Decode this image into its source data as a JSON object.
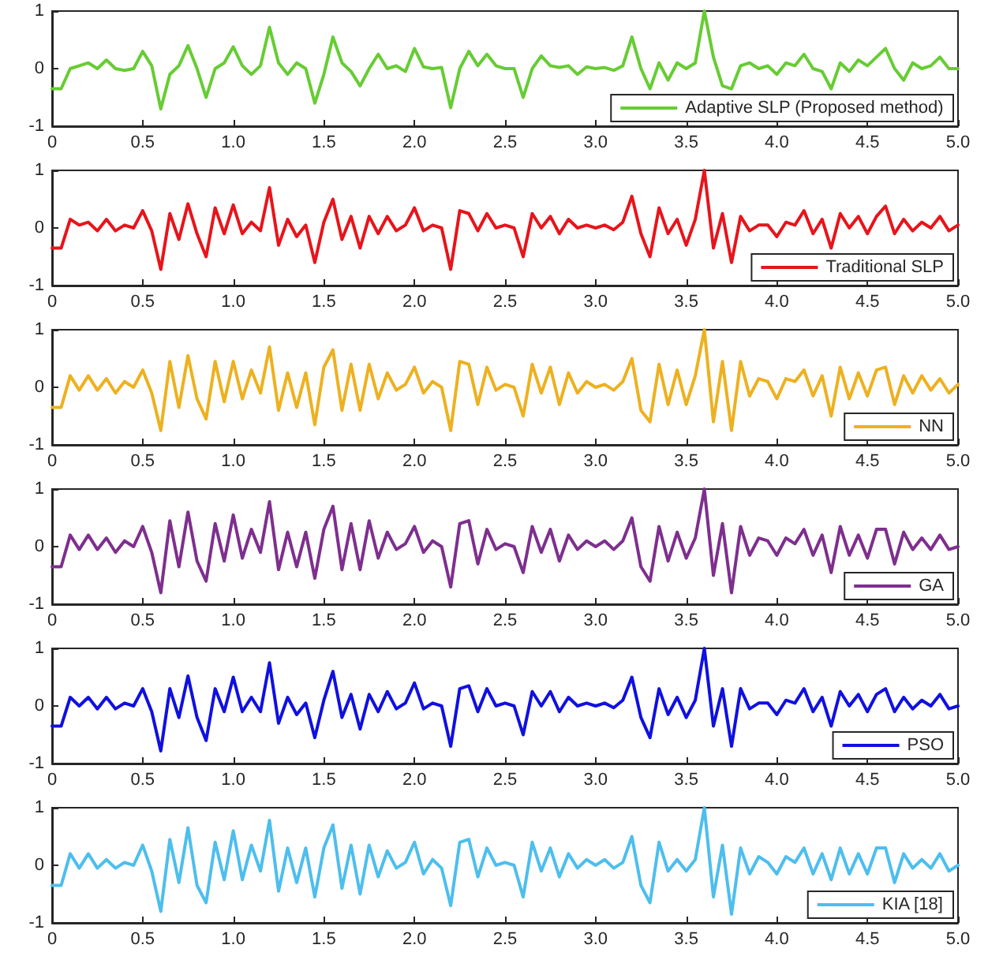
{
  "chart_data": [
    {
      "type": "line",
      "x": [
        0,
        0.05,
        0.1,
        0.15,
        0.2,
        0.25,
        0.3,
        0.35,
        0.4,
        0.45,
        0.5,
        0.55,
        0.6,
        0.65,
        0.7,
        0.75,
        0.8,
        0.85,
        0.9,
        0.95,
        1,
        1.05,
        1.1,
        1.15,
        1.2,
        1.25,
        1.3,
        1.35,
        1.4,
        1.45,
        1.5,
        1.55,
        1.6,
        1.65,
        1.7,
        1.75,
        1.8,
        1.85,
        1.9,
        1.95,
        2,
        2.05,
        2.1,
        2.15,
        2.2,
        2.25,
        2.3,
        2.35,
        2.4,
        2.45,
        2.5,
        2.55,
        2.6,
        2.65,
        2.7,
        2.75,
        2.8,
        2.85,
        2.9,
        2.95,
        3,
        3.05,
        3.1,
        3.15,
        3.2,
        3.25,
        3.3,
        3.35,
        3.4,
        3.45,
        3.5,
        3.55,
        3.6,
        3.65,
        3.7,
        3.75,
        3.8,
        3.85,
        3.9,
        3.95,
        4,
        4.05,
        4.1,
        4.15,
        4.2,
        4.25,
        4.3,
        4.35,
        4.4,
        4.45,
        4.5,
        4.55,
        4.6,
        4.65,
        4.7,
        4.75,
        4.8,
        4.85,
        4.9,
        4.95,
        5
      ],
      "series": [
        {
          "name": "Adaptive SLP (Proposed method)",
          "color": "#66cc33",
          "values": [
            -0.35,
            -0.35,
            0,
            0.05,
            0.1,
            0,
            0.15,
            0,
            -0.03,
            0,
            0.3,
            0.05,
            -0.7,
            -0.1,
            0.05,
            0.4,
            0,
            -0.5,
            0,
            0.1,
            0.38,
            0.05,
            -0.1,
            0.05,
            0.72,
            0.1,
            -0.1,
            0.1,
            0,
            -0.6,
            -0.1,
            0.55,
            0.1,
            -0.05,
            -0.3,
            0,
            0.25,
            0,
            0.05,
            -0.05,
            0.35,
            0.03,
            0,
            0.02,
            -0.68,
            0,
            0.3,
            0.05,
            0.25,
            0.05,
            0,
            0,
            -0.5,
            0,
            0.22,
            0.05,
            0.02,
            0.05,
            -0.1,
            0.03,
            0,
            0.02,
            -0.03,
            0.05,
            0.55,
            0,
            -0.35,
            0.1,
            -0.2,
            0.1,
            0,
            0.1,
            1.0,
            0.2,
            -0.3,
            -0.35,
            0.05,
            0.1,
            0,
            0.05,
            -0.1,
            0.1,
            0.05,
            0.25,
            0,
            -0.05,
            -0.35,
            0.1,
            -0.05,
            0.15,
            0.05,
            0.2,
            0.35,
            0,
            -0.2,
            0.1,
            0,
            0.05,
            0.2,
            0,
            0
          ]
        }
      ],
      "xlim": [
        0,
        5
      ],
      "xticks": [
        0,
        0.5,
        {
          "value": 1,
          "label": "1.0"
        },
        1.5,
        {
          "value": 2,
          "label": "2.0"
        },
        2.5,
        {
          "value": 3,
          "label": "3.0"
        },
        3.5,
        {
          "value": 4,
          "label": "4.0"
        },
        4.5,
        {
          "value": 5,
          "label": "5.0"
        }
      ],
      "ylim": [
        -1,
        1
      ],
      "yticks": [
        -1,
        0,
        1
      ],
      "grid": false,
      "legend": "bottom right"
    },
    {
      "type": "line",
      "x": [
        0,
        0.05,
        0.1,
        0.15,
        0.2,
        0.25,
        0.3,
        0.35,
        0.4,
        0.45,
        0.5,
        0.55,
        0.6,
        0.65,
        0.7,
        0.75,
        0.8,
        0.85,
        0.9,
        0.95,
        1,
        1.05,
        1.1,
        1.15,
        1.2,
        1.25,
        1.3,
        1.35,
        1.4,
        1.45,
        1.5,
        1.55,
        1.6,
        1.65,
        1.7,
        1.75,
        1.8,
        1.85,
        1.9,
        1.95,
        2,
        2.05,
        2.1,
        2.15,
        2.2,
        2.25,
        2.3,
        2.35,
        2.4,
        2.45,
        2.5,
        2.55,
        2.6,
        2.65,
        2.7,
        2.75,
        2.8,
        2.85,
        2.9,
        2.95,
        3,
        3.05,
        3.1,
        3.15,
        3.2,
        3.25,
        3.3,
        3.35,
        3.4,
        3.45,
        3.5,
        3.55,
        3.6,
        3.65,
        3.7,
        3.75,
        3.8,
        3.85,
        3.9,
        3.95,
        4,
        4.05,
        4.1,
        4.15,
        4.2,
        4.25,
        4.3,
        4.35,
        4.4,
        4.45,
        4.5,
        4.55,
        4.6,
        4.65,
        4.7,
        4.75,
        4.8,
        4.85,
        4.9,
        4.95,
        5
      ],
      "series": [
        {
          "name": "Traditional SLP",
          "color": "#e8141b",
          "values": [
            -0.35,
            -0.35,
            0.15,
            0.05,
            0.1,
            -0.05,
            0.15,
            -0.05,
            0.05,
            0,
            0.3,
            -0.05,
            -0.72,
            0.25,
            -0.2,
            0.42,
            -0.1,
            -0.5,
            0.35,
            -0.1,
            0.4,
            -0.1,
            0.1,
            -0.05,
            0.7,
            -0.3,
            0.15,
            -0.15,
            0.05,
            -0.6,
            0.1,
            0.5,
            -0.2,
            0.2,
            -0.35,
            0.2,
            -0.1,
            0.2,
            -0.05,
            0.05,
            0.35,
            -0.05,
            0.05,
            0,
            -0.72,
            0.3,
            0.25,
            -0.05,
            0.25,
            0,
            0.05,
            0,
            -0.5,
            0.25,
            0,
            0.2,
            -0.1,
            0.15,
            0,
            0.05,
            0,
            0.05,
            -0.03,
            0.1,
            0.55,
            -0.1,
            -0.5,
            0.35,
            -0.1,
            0.15,
            -0.3,
            0.15,
            1.0,
            -0.35,
            0.25,
            -0.6,
            0.2,
            -0.05,
            0.05,
            0.05,
            -0.15,
            0.1,
            0.05,
            0.3,
            -0.1,
            0.15,
            -0.35,
            0.25,
            0,
            0.2,
            -0.1,
            0.2,
            0.38,
            -0.1,
            0.15,
            -0.05,
            0.1,
            0,
            0.2,
            -0.05,
            0.05
          ]
        }
      ],
      "xlim": [
        0,
        5
      ],
      "xticks": [
        0,
        0.5,
        {
          "value": 1,
          "label": "1.0"
        },
        1.5,
        {
          "value": 2,
          "label": "2.0"
        },
        2.5,
        {
          "value": 3,
          "label": "3.0"
        },
        3.5,
        {
          "value": 4,
          "label": "4.0"
        },
        4.5,
        {
          "value": 5,
          "label": "5.0"
        }
      ],
      "ylim": [
        -1,
        1
      ],
      "yticks": [
        -1,
        0,
        1
      ],
      "grid": false,
      "legend": "bottom right"
    },
    {
      "type": "line",
      "x": [
        0,
        0.05,
        0.1,
        0.15,
        0.2,
        0.25,
        0.3,
        0.35,
        0.4,
        0.45,
        0.5,
        0.55,
        0.6,
        0.65,
        0.7,
        0.75,
        0.8,
        0.85,
        0.9,
        0.95,
        1,
        1.05,
        1.1,
        1.15,
        1.2,
        1.25,
        1.3,
        1.35,
        1.4,
        1.45,
        1.5,
        1.55,
        1.6,
        1.65,
        1.7,
        1.75,
        1.8,
        1.85,
        1.9,
        1.95,
        2,
        2.05,
        2.1,
        2.15,
        2.2,
        2.25,
        2.3,
        2.35,
        2.4,
        2.45,
        2.5,
        2.55,
        2.6,
        2.65,
        2.7,
        2.75,
        2.8,
        2.85,
        2.9,
        2.95,
        3,
        3.05,
        3.1,
        3.15,
        3.2,
        3.25,
        3.3,
        3.35,
        3.4,
        3.45,
        3.5,
        3.55,
        3.6,
        3.65,
        3.7,
        3.75,
        3.8,
        3.85,
        3.9,
        3.95,
        4,
        4.05,
        4.1,
        4.15,
        4.2,
        4.25,
        4.3,
        4.35,
        4.4,
        4.45,
        4.5,
        4.55,
        4.6,
        4.65,
        4.7,
        4.75,
        4.8,
        4.85,
        4.9,
        4.95,
        5
      ],
      "series": [
        {
          "name": "NN",
          "color": "#edb120",
          "values": [
            -0.35,
            -0.35,
            0.2,
            -0.05,
            0.2,
            -0.05,
            0.15,
            -0.1,
            0.1,
            0,
            0.3,
            -0.1,
            -0.75,
            0.45,
            -0.35,
            0.55,
            -0.2,
            -0.55,
            0.45,
            -0.25,
            0.45,
            -0.2,
            0.3,
            -0.1,
            0.7,
            -0.4,
            0.25,
            -0.35,
            0.25,
            -0.65,
            0.35,
            0.65,
            -0.4,
            0.4,
            -0.4,
            0.4,
            -0.2,
            0.25,
            -0.05,
            0.05,
            0.35,
            -0.1,
            0.1,
            0,
            -0.75,
            0.45,
            0.4,
            -0.3,
            0.35,
            -0.05,
            0.05,
            0,
            -0.5,
            0.4,
            -0.1,
            0.35,
            -0.3,
            0.25,
            -0.1,
            0.1,
            0,
            0.05,
            -0.05,
            0.1,
            0.5,
            -0.4,
            -0.6,
            0.4,
            -0.3,
            0.3,
            -0.3,
            0.2,
            1.0,
            -0.6,
            0.45,
            -0.75,
            0.45,
            -0.15,
            0.15,
            0.1,
            -0.2,
            0.15,
            0.1,
            0.3,
            -0.15,
            0.2,
            -0.5,
            0.35,
            -0.2,
            0.25,
            -0.15,
            0.3,
            0.35,
            -0.3,
            0.2,
            -0.1,
            0.2,
            -0.05,
            0.15,
            -0.1,
            0.05
          ]
        }
      ],
      "xlim": [
        0,
        5
      ],
      "xticks": [
        0,
        0.5,
        {
          "value": 1,
          "label": "1.0"
        },
        1.5,
        {
          "value": 2,
          "label": "2.0"
        },
        2.5,
        {
          "value": 3,
          "label": "3.0"
        },
        3.5,
        {
          "value": 4,
          "label": "4.0"
        },
        4.5,
        {
          "value": 5,
          "label": "5.0"
        }
      ],
      "ylim": [
        -1,
        1
      ],
      "yticks": [
        -1,
        0,
        1
      ],
      "grid": false,
      "legend": "bottom right"
    },
    {
      "type": "line",
      "x": [
        0,
        0.05,
        0.1,
        0.15,
        0.2,
        0.25,
        0.3,
        0.35,
        0.4,
        0.45,
        0.5,
        0.55,
        0.6,
        0.65,
        0.7,
        0.75,
        0.8,
        0.85,
        0.9,
        0.95,
        1,
        1.05,
        1.1,
        1.15,
        1.2,
        1.25,
        1.3,
        1.35,
        1.4,
        1.45,
        1.5,
        1.55,
        1.6,
        1.65,
        1.7,
        1.75,
        1.8,
        1.85,
        1.9,
        1.95,
        2,
        2.05,
        2.1,
        2.15,
        2.2,
        2.25,
        2.3,
        2.35,
        2.4,
        2.45,
        2.5,
        2.55,
        2.6,
        2.65,
        2.7,
        2.75,
        2.8,
        2.85,
        2.9,
        2.95,
        3,
        3.05,
        3.1,
        3.15,
        3.2,
        3.25,
        3.3,
        3.35,
        3.4,
        3.45,
        3.5,
        3.55,
        3.6,
        3.65,
        3.7,
        3.75,
        3.8,
        3.85,
        3.9,
        3.95,
        4,
        4.05,
        4.1,
        4.15,
        4.2,
        4.25,
        4.3,
        4.35,
        4.4,
        4.45,
        4.5,
        4.55,
        4.6,
        4.65,
        4.7,
        4.75,
        4.8,
        4.85,
        4.9,
        4.95,
        5
      ],
      "series": [
        {
          "name": "GA",
          "color": "#7e2f8e",
          "values": [
            -0.35,
            -0.35,
            0.2,
            -0.05,
            0.2,
            -0.05,
            0.15,
            -0.1,
            0.1,
            0,
            0.35,
            -0.1,
            -0.8,
            0.45,
            -0.35,
            0.6,
            -0.25,
            -0.6,
            0.4,
            -0.25,
            0.55,
            -0.2,
            0.3,
            -0.1,
            0.78,
            -0.4,
            0.25,
            -0.35,
            0.25,
            -0.55,
            0.3,
            0.7,
            -0.4,
            0.4,
            -0.4,
            0.45,
            -0.2,
            0.25,
            -0.05,
            0.05,
            0.35,
            -0.1,
            0.1,
            0,
            -0.7,
            0.4,
            0.45,
            -0.3,
            0.3,
            -0.05,
            0.05,
            0,
            -0.45,
            0.35,
            -0.1,
            0.3,
            -0.25,
            0.2,
            -0.05,
            0.1,
            0,
            0.1,
            -0.05,
            0.1,
            0.5,
            -0.35,
            -0.6,
            0.35,
            -0.25,
            0.25,
            -0.2,
            0.15,
            1.0,
            -0.5,
            0.4,
            -0.8,
            0.35,
            -0.15,
            0.15,
            0.1,
            -0.15,
            0.15,
            0.05,
            0.3,
            -0.15,
            0.2,
            -0.45,
            0.35,
            -0.15,
            0.2,
            -0.2,
            0.3,
            0.3,
            -0.3,
            0.25,
            -0.05,
            0.15,
            -0.05,
            0.2,
            -0.05,
            0
          ]
        }
      ],
      "xlim": [
        0,
        5
      ],
      "xticks": [
        0,
        0.5,
        {
          "value": 1,
          "label": "1.0"
        },
        1.5,
        {
          "value": 2,
          "label": "2.0"
        },
        2.5,
        {
          "value": 3,
          "label": "3.0"
        },
        3.5,
        {
          "value": 4,
          "label": "4.0"
        },
        4.5,
        {
          "value": 5,
          "label": "5.0"
        }
      ],
      "ylim": [
        -1,
        1
      ],
      "yticks": [
        -1,
        0,
        1
      ],
      "grid": false,
      "legend": "bottom right"
    },
    {
      "type": "line",
      "x": [
        0,
        0.05,
        0.1,
        0.15,
        0.2,
        0.25,
        0.3,
        0.35,
        0.4,
        0.45,
        0.5,
        0.55,
        0.6,
        0.65,
        0.7,
        0.75,
        0.8,
        0.85,
        0.9,
        0.95,
        1,
        1.05,
        1.1,
        1.15,
        1.2,
        1.25,
        1.3,
        1.35,
        1.4,
        1.45,
        1.5,
        1.55,
        1.6,
        1.65,
        1.7,
        1.75,
        1.8,
        1.85,
        1.9,
        1.95,
        2,
        2.05,
        2.1,
        2.15,
        2.2,
        2.25,
        2.3,
        2.35,
        2.4,
        2.45,
        2.5,
        2.55,
        2.6,
        2.65,
        2.7,
        2.75,
        2.8,
        2.85,
        2.9,
        2.95,
        3,
        3.05,
        3.1,
        3.15,
        3.2,
        3.25,
        3.3,
        3.35,
        3.4,
        3.45,
        3.5,
        3.55,
        3.6,
        3.65,
        3.7,
        3.75,
        3.8,
        3.85,
        3.9,
        3.95,
        4,
        4.05,
        4.1,
        4.15,
        4.2,
        4.25,
        4.3,
        4.35,
        4.4,
        4.45,
        4.5,
        4.55,
        4.6,
        4.65,
        4.7,
        4.75,
        4.8,
        4.85,
        4.9,
        4.95,
        5
      ],
      "series": [
        {
          "name": "PSO",
          "color": "#1010e0",
          "values": [
            -0.35,
            -0.35,
            0.15,
            0,
            0.15,
            -0.05,
            0.15,
            -0.05,
            0.05,
            0,
            0.3,
            -0.1,
            -0.78,
            0.3,
            -0.2,
            0.52,
            -0.2,
            -0.6,
            0.3,
            -0.1,
            0.5,
            -0.1,
            0.15,
            -0.1,
            0.75,
            -0.3,
            0.15,
            -0.15,
            0.05,
            -0.55,
            0.1,
            0.6,
            -0.2,
            0.2,
            -0.4,
            0.2,
            -0.1,
            0.25,
            -0.05,
            0.05,
            0.4,
            -0.05,
            0.05,
            0,
            -0.7,
            0.3,
            0.35,
            -0.1,
            0.3,
            0,
            0.05,
            0,
            -0.5,
            0.25,
            0,
            0.25,
            -0.1,
            0.15,
            0,
            0.05,
            0,
            0.05,
            -0.03,
            0.1,
            0.5,
            -0.2,
            -0.55,
            0.3,
            -0.15,
            0.15,
            -0.2,
            0.1,
            1.0,
            -0.35,
            0.3,
            -0.7,
            0.3,
            -0.05,
            0.05,
            0.05,
            -0.15,
            0.1,
            0.05,
            0.3,
            -0.1,
            0.15,
            -0.35,
            0.25,
            0,
            0.2,
            -0.1,
            0.2,
            0.3,
            -0.1,
            0.15,
            -0.05,
            0.1,
            0,
            0.2,
            -0.05,
            0
          ]
        }
      ],
      "xlim": [
        0,
        5
      ],
      "xticks": [
        0,
        0.5,
        {
          "value": 1,
          "label": "1.0"
        },
        1.5,
        {
          "value": 2,
          "label": "2.0"
        },
        2.5,
        {
          "value": 3,
          "label": "3.0"
        },
        3.5,
        {
          "value": 4,
          "label": "4.0"
        },
        4.5,
        {
          "value": 5,
          "label": "5.0"
        }
      ],
      "ylim": [
        -1,
        1
      ],
      "yticks": [
        -1,
        0,
        1
      ],
      "grid": false,
      "legend": "bottom right"
    },
    {
      "type": "line",
      "x": [
        0,
        0.05,
        0.1,
        0.15,
        0.2,
        0.25,
        0.3,
        0.35,
        0.4,
        0.45,
        0.5,
        0.55,
        0.6,
        0.65,
        0.7,
        0.75,
        0.8,
        0.85,
        0.9,
        0.95,
        1,
        1.05,
        1.1,
        1.15,
        1.2,
        1.25,
        1.3,
        1.35,
        1.4,
        1.45,
        1.5,
        1.55,
        1.6,
        1.65,
        1.7,
        1.75,
        1.8,
        1.85,
        1.9,
        1.95,
        2,
        2.05,
        2.1,
        2.15,
        2.2,
        2.25,
        2.3,
        2.35,
        2.4,
        2.45,
        2.5,
        2.55,
        2.6,
        2.65,
        2.7,
        2.75,
        2.8,
        2.85,
        2.9,
        2.95,
        3,
        3.05,
        3.1,
        3.15,
        3.2,
        3.25,
        3.3,
        3.35,
        3.4,
        3.45,
        3.5,
        3.55,
        3.6,
        3.65,
        3.7,
        3.75,
        3.8,
        3.85,
        3.9,
        3.95,
        4,
        4.05,
        4.1,
        4.15,
        4.2,
        4.25,
        4.3,
        4.35,
        4.4,
        4.45,
        4.5,
        4.55,
        4.6,
        4.65,
        4.7,
        4.75,
        4.8,
        4.85,
        4.9,
        4.95,
        5
      ],
      "series": [
        {
          "name": "KIA [18]",
          "color": "#4dbeee",
          "values": [
            -0.35,
            -0.35,
            0.2,
            -0.05,
            0.2,
            -0.05,
            0.1,
            -0.05,
            0.05,
            0,
            0.35,
            -0.1,
            -0.8,
            0.45,
            -0.3,
            0.65,
            -0.35,
            -0.65,
            0.4,
            -0.25,
            0.6,
            -0.25,
            0.35,
            -0.1,
            0.78,
            -0.45,
            0.3,
            -0.3,
            0.3,
            -0.55,
            0.3,
            0.7,
            -0.4,
            0.35,
            -0.5,
            0.35,
            -0.2,
            0.25,
            -0.05,
            0.05,
            0.4,
            -0.15,
            0.1,
            -0.05,
            -0.7,
            0.4,
            0.45,
            -0.2,
            0.3,
            0,
            0.05,
            0,
            -0.55,
            0.4,
            -0.1,
            0.3,
            -0.2,
            0.2,
            -0.05,
            0.1,
            0,
            0.1,
            -0.05,
            0.05,
            0.5,
            -0.35,
            -0.65,
            0.4,
            -0.1,
            0.1,
            -0.1,
            0.1,
            1.0,
            -0.55,
            0.35,
            -0.85,
            0.3,
            -0.15,
            0.15,
            0.05,
            -0.15,
            0.15,
            0.05,
            0.3,
            -0.15,
            0.2,
            -0.25,
            0.3,
            -0.15,
            0.2,
            -0.15,
            0.3,
            0.3,
            -0.3,
            0.2,
            -0.05,
            0.1,
            -0.05,
            0.2,
            -0.1,
            0
          ]
        }
      ],
      "xlim": [
        0,
        5
      ],
      "xticks": [
        0,
        0.5,
        {
          "value": 1,
          "label": "1.0"
        },
        1.5,
        {
          "value": 2,
          "label": "2.0"
        },
        2.5,
        {
          "value": 3,
          "label": "3.0"
        },
        3.5,
        {
          "value": 4,
          "label": "4.0"
        },
        4.5,
        {
          "value": 5,
          "label": "5.0"
        }
      ],
      "ylim": [
        -1,
        1
      ],
      "yticks": [
        -1,
        0,
        1
      ],
      "grid": false,
      "legend": "bottom right"
    }
  ]
}
